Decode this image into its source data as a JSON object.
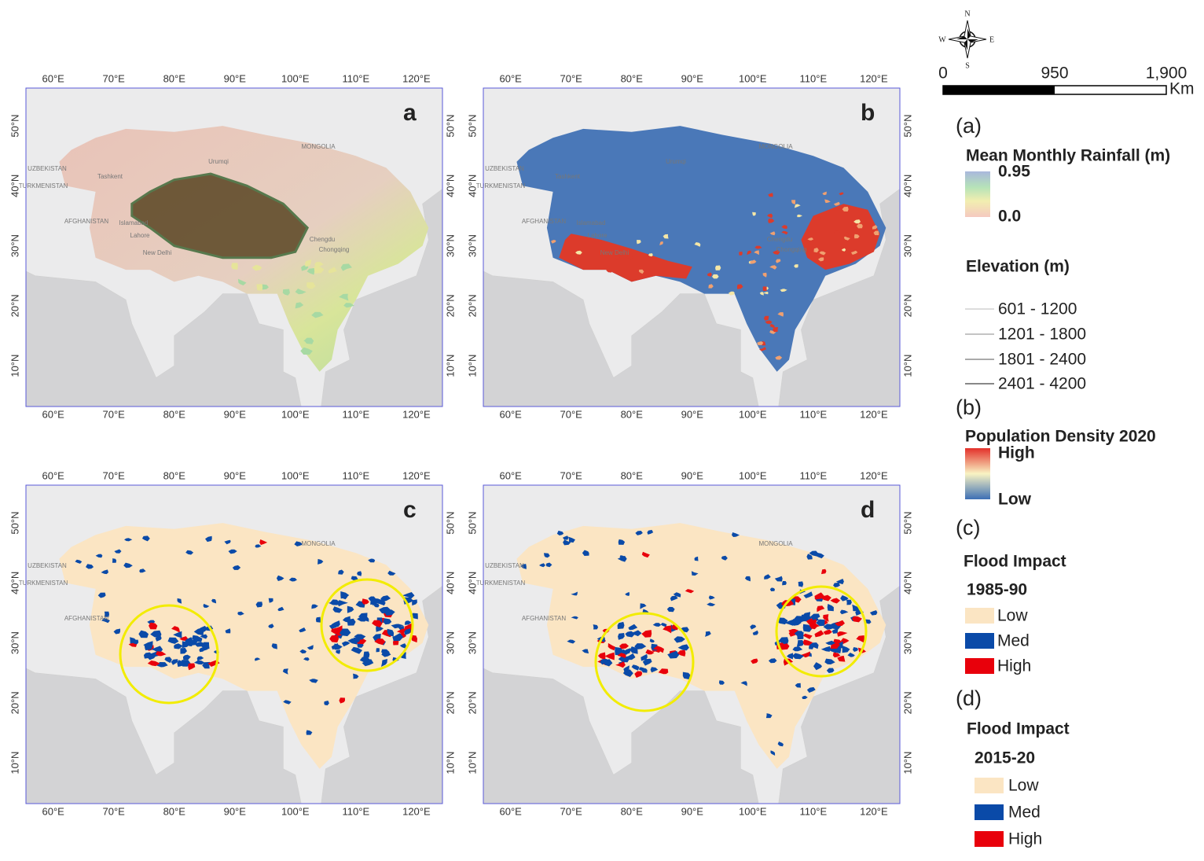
{
  "compass": {
    "n": "N",
    "s": "S",
    "e": "E",
    "w": "W"
  },
  "scale_bar": {
    "ticks": [
      0,
      950,
      {
        "value": 1900,
        "label": "1,900"
      }
    ],
    "unit": "Km"
  },
  "map_extent": {
    "lon": [
      55.5,
      124.3
    ],
    "lat": [
      3.2,
      56.3
    ]
  },
  "lon_ticks": [
    {
      "value": 60,
      "label": "60°E"
    },
    {
      "value": 70,
      "label": "70°E"
    },
    {
      "value": 80,
      "label": "80°E"
    },
    {
      "value": 90,
      "label": "90°E"
    },
    {
      "value": 100,
      "label": "100°E"
    },
    {
      "value": 110,
      "label": "110°E"
    },
    {
      "value": 120,
      "label": "120°E"
    }
  ],
  "lat_ticks": [
    {
      "value": 10,
      "label": "10°N"
    },
    {
      "value": 20,
      "label": "20°N"
    },
    {
      "value": 30,
      "label": "30°N"
    },
    {
      "value": 40,
      "label": "40°N"
    },
    {
      "value": 50,
      "label": "50°N"
    }
  ],
  "panels": [
    {
      "letter": "a",
      "labels": [
        "MONGOLIA",
        "UZBEKISTAN",
        "TURKMENISTAN",
        "AFGHANISTAN",
        "Tashkent",
        "Urumqi",
        "Islamabad",
        "Lahore",
        "New Delhi",
        "Chengdu",
        "Chongqing"
      ]
    },
    {
      "letter": "b",
      "labels": [
        "MONGOLIA",
        "UZBEKISTAN",
        "TURKMENISTAN",
        "AFGHANISTAN",
        "Tashkent",
        "Urumqi",
        "Islamabad",
        "Lahore",
        "New Delhi",
        "Chengdu",
        "Chongqing"
      ]
    },
    {
      "letter": "c",
      "labels": [
        "MONGOLIA",
        "UZBEKISTAN",
        "TURKMENISTAN",
        "AFGHANISTAN"
      ]
    },
    {
      "letter": "d",
      "labels": [
        "MONGOLIA",
        "UZBEKISTAN",
        "TURKMENISTAN",
        "AFGHANISTAN"
      ]
    }
  ],
  "legend": {
    "a": {
      "tag": "(a)",
      "title": "Mean Monthly Rainfall (m)",
      "max": "0.95",
      "min": "0.0"
    },
    "elevation": {
      "title": "Elevation (m)",
      "classes": [
        "601 - 1200",
        "1201 - 1800",
        "1801 - 2400",
        "2401 - 4200"
      ]
    },
    "b": {
      "tag": "(b)",
      "title": "Population Density 2020",
      "high": "High",
      "low": "Low"
    },
    "c": {
      "tag": "(c)",
      "title": "Flood Impact",
      "period": "1985-90",
      "classes": [
        {
          "label": "Low",
          "color": "#fbe5c3"
        },
        {
          "label": "Med",
          "color": "#0a4aa8"
        },
        {
          "label": "High",
          "color": "#e8000b"
        }
      ]
    },
    "d": {
      "tag": "(d)",
      "title": "Flood Impact",
      "period": "2015-20",
      "classes": [
        {
          "label": "Low",
          "color": "#fbe5c3"
        },
        {
          "label": "Med",
          "color": "#0a4aa8"
        },
        {
          "label": "High",
          "color": "#e8000b"
        }
      ]
    }
  }
}
